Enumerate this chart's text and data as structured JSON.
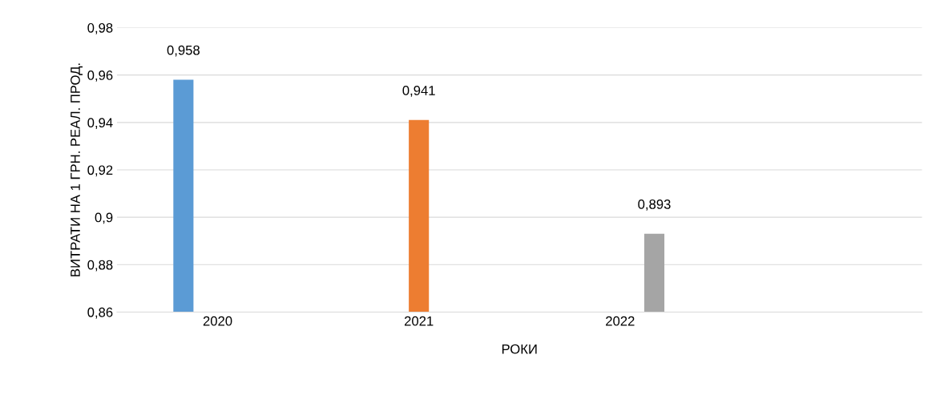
{
  "chart_data": {
    "type": "bar",
    "xlabel": "РОКИ",
    "ylabel": "ВИТРАТИ НА 1 ГРН. РЕАЛ. ПРОД.",
    "categories": [
      "2020",
      "2021",
      "2022",
      null
    ],
    "series": [
      {
        "color": "#5b9bd5",
        "values": [
          0.958,
          null,
          null,
          null
        ],
        "value_labels": [
          "0,958",
          null,
          null,
          null
        ]
      },
      {
        "color": "#ed7d31",
        "values": [
          null,
          0.941,
          null,
          null
        ],
        "value_labels": [
          null,
          "0,941",
          null,
          null
        ]
      },
      {
        "color": "#a5a5a5",
        "values": [
          null,
          null,
          0.893,
          null
        ],
        "value_labels": [
          null,
          null,
          "0,893",
          null
        ]
      }
    ],
    "ylim": [
      0.86,
      0.98
    ],
    "yticks": [
      {
        "value": 0.86,
        "label": "0,86"
      },
      {
        "value": 0.88,
        "label": "0,88"
      },
      {
        "value": 0.9,
        "label": "0,9"
      },
      {
        "value": 0.92,
        "label": "0,92"
      },
      {
        "value": 0.94,
        "label": "0,94"
      },
      {
        "value": 0.96,
        "label": "0,96"
      },
      {
        "value": 0.98,
        "label": "0,98"
      }
    ],
    "grid": "y",
    "legend": false
  }
}
